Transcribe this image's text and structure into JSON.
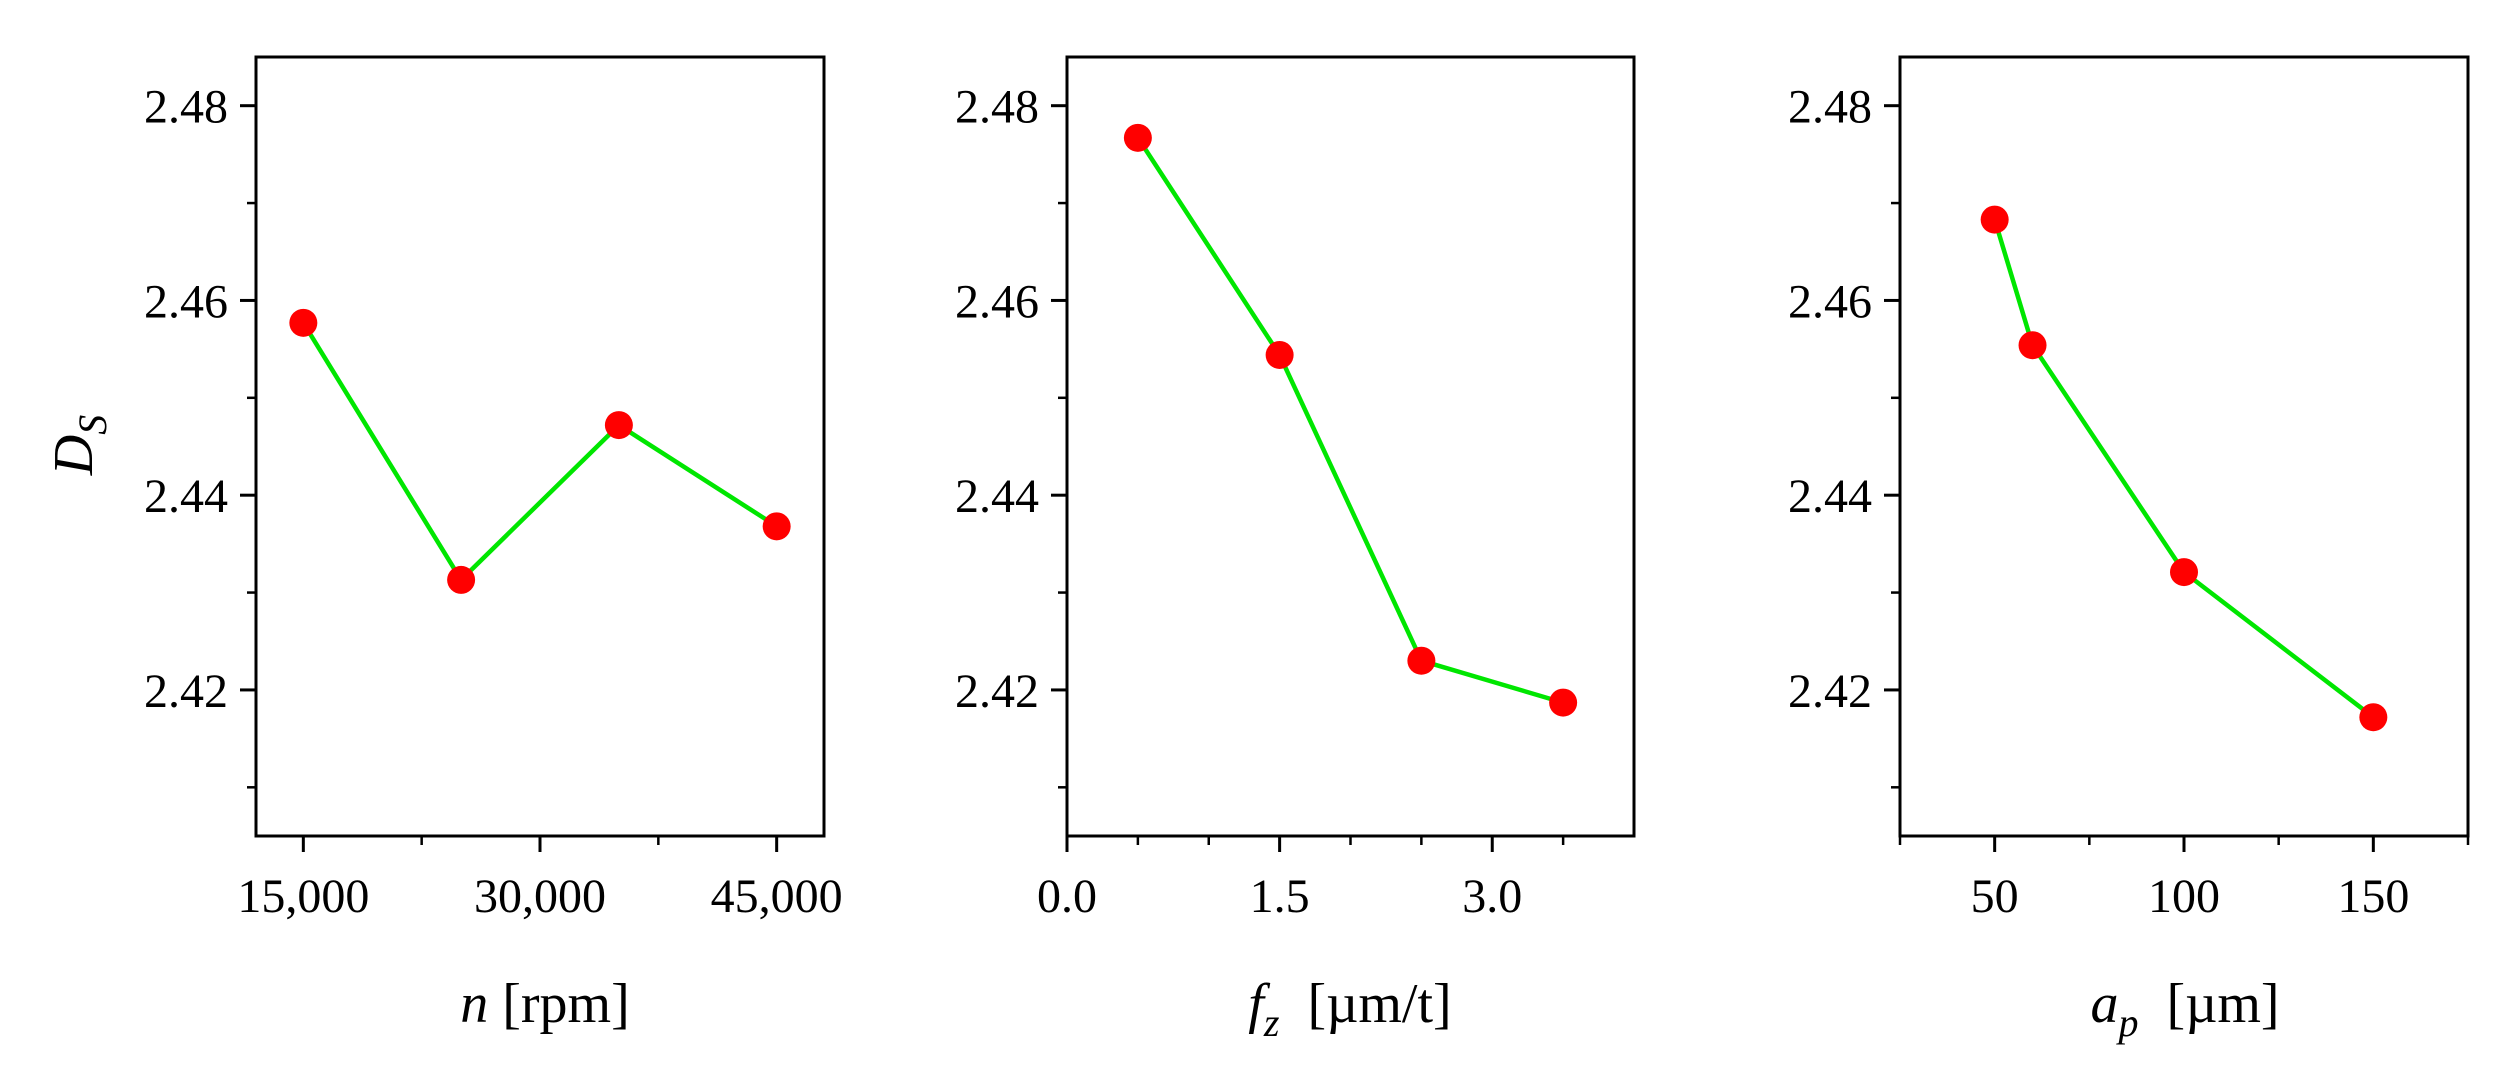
{
  "figure": {
    "ylabel": {
      "main": "D",
      "sub": "S"
    },
    "colors": {
      "line": "#00e600",
      "marker": "#ff0000",
      "axis": "#000000"
    }
  },
  "chart_data": [
    {
      "type": "line",
      "xlabel": {
        "main": "n",
        "rest": " [rpm]"
      },
      "x": [
        15000,
        25000,
        35000,
        45000
      ],
      "values": [
        2.4577,
        2.4313,
        2.4472,
        2.4368
      ],
      "xlim": [
        12000,
        48000
      ],
      "xticks": [
        15000,
        30000,
        45000
      ],
      "xtick_labels": [
        "15,000",
        "30,000",
        "45,000"
      ],
      "xminor": [
        22500,
        37500
      ],
      "ylim": [
        2.405,
        2.485
      ],
      "yticks": [
        2.42,
        2.44,
        2.46,
        2.48
      ],
      "ytick_labels": [
        "2.42",
        "2.44",
        "2.46",
        "2.48"
      ],
      "yminor": [
        2.41,
        2.43,
        2.45,
        2.47
      ]
    },
    {
      "type": "line",
      "xlabel": {
        "main": "f",
        "sub": "z",
        "rest": "  [µm/t]"
      },
      "x": [
        0.5,
        1.5,
        2.5,
        3.5
      ],
      "values": [
        2.4767,
        2.4544,
        2.423,
        2.4187
      ],
      "xlim": [
        0.0,
        4.0
      ],
      "xticks": [
        0.0,
        1.5,
        3.0
      ],
      "xtick_labels": [
        "0.0",
        "1.5",
        "3.0"
      ],
      "xminor": [
        0.5,
        1.0,
        2.0,
        2.5,
        3.5
      ],
      "ylim": [
        2.405,
        2.485
      ],
      "yticks": [
        2.42,
        2.44,
        2.46,
        2.48
      ],
      "ytick_labels": [
        "2.42",
        "2.44",
        "2.46",
        "2.48"
      ],
      "yminor": [
        2.41,
        2.43,
        2.45,
        2.47
      ]
    },
    {
      "type": "line",
      "xlabel": {
        "main": "a",
        "sub": "p",
        "rest": "  [µm]"
      },
      "x": [
        50,
        60,
        100,
        150
      ],
      "values": [
        2.4683,
        2.4554,
        2.4321,
        2.4172
      ],
      "xlim": [
        25,
        175
      ],
      "xticks": [
        50,
        100,
        150
      ],
      "xtick_labels": [
        "50",
        "100",
        "150"
      ],
      "xminor": [
        25,
        75,
        125,
        175
      ],
      "ylim": [
        2.405,
        2.485
      ],
      "yticks": [
        2.42,
        2.44,
        2.46,
        2.48
      ],
      "ytick_labels": [
        "2.42",
        "2.44",
        "2.46",
        "2.48"
      ],
      "yminor": [
        2.41,
        2.43,
        2.45,
        2.47
      ]
    }
  ]
}
